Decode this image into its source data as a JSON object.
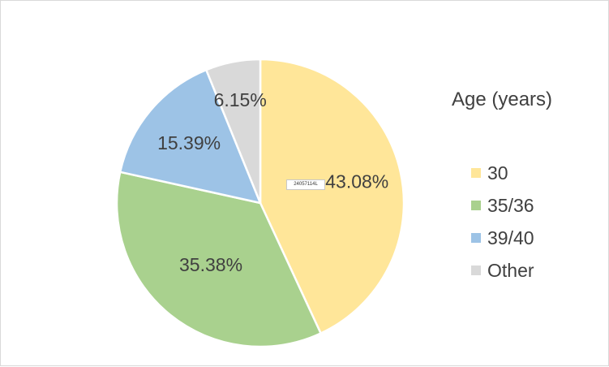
{
  "chart_data": {
    "type": "pie",
    "title": "",
    "legend_title": "Age (years)",
    "legend_position": "right",
    "categories": [
      "30",
      "35/36",
      "39/40",
      "Other"
    ],
    "values": [
      43.08,
      35.38,
      15.39,
      6.15
    ],
    "labels": [
      "43.08%",
      "35.38%",
      "15.39%",
      "6.15%"
    ],
    "colors": [
      "#FFE699",
      "#A9D18E",
      "#9DC3E6",
      "#D9D9D9"
    ],
    "start_angle_deg": 0,
    "direction": "clockwise"
  },
  "tag": {
    "text": "24057114L"
  }
}
